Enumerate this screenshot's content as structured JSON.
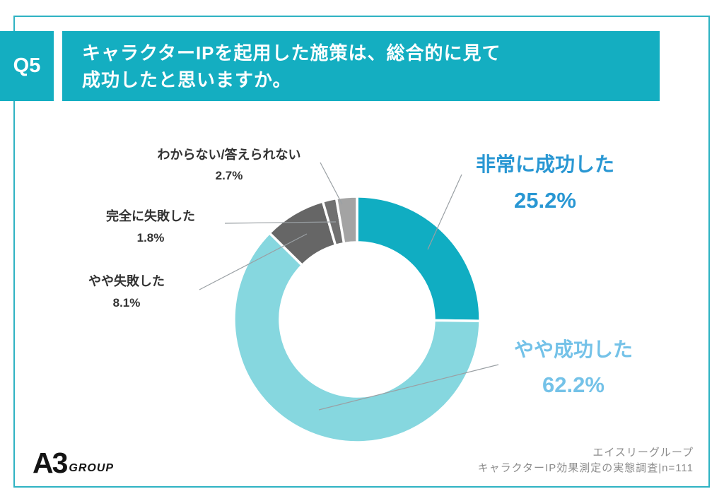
{
  "header": {
    "q_label": "Q5",
    "question_line1": "キャラクターIPを起用した施策は、総合的に見て",
    "question_line2": "成功したと思いますか。"
  },
  "chart_data": {
    "type": "pie",
    "subtype": "donut",
    "title": "キャラクターIPを起用した施策は、総合的に見て成功したと思いますか。",
    "unit": "%",
    "sample_note": "n=111",
    "direction": "clockwise",
    "start_angle_deg": 0,
    "center": [
      505,
      452
    ],
    "outer_radius": 174,
    "inner_radius": 109,
    "segment_gap_color": "#ffffff",
    "leader_line_color": "#9AA0A4",
    "segments": [
      {
        "label": "非常に成功した",
        "value": 25.2,
        "pct_label": "25.2%",
        "color": "#10ADC2",
        "label_color": "#2997D3"
      },
      {
        "label": "やや成功した",
        "value": 62.2,
        "pct_label": "62.2%",
        "color": "#86D7DF",
        "label_color": "#74C2E8"
      },
      {
        "label": "やや失敗した",
        "value": 8.1,
        "pct_label": "8.1%",
        "color": "#666666",
        "label_color": "#333333"
      },
      {
        "label": "完全に失敗した",
        "value": 1.8,
        "pct_label": "1.8%",
        "color": "#707070",
        "label_color": "#333333"
      },
      {
        "label": "わからない/答えられない",
        "value": 2.7,
        "pct_label": "2.7%",
        "color": "#A3A3A3",
        "label_color": "#333333"
      }
    ],
    "leader_lines": [
      {
        "from": [
          653,
          247
        ],
        "to": [
          605,
          353
        ]
      },
      {
        "from": [
          705,
          516
        ],
        "to": [
          451,
          580
        ]
      },
      {
        "from": [
          282,
          410
        ],
        "to": [
          434,
          331
        ]
      },
      {
        "from": [
          318,
          316
        ],
        "to": [
          475,
          314
        ]
      },
      {
        "from": [
          453,
          230
        ],
        "to": [
          484,
          289
        ]
      }
    ]
  },
  "footer": {
    "logo_main": "A3",
    "logo_sub": "GROUP",
    "credit_line1": "エイスリーグループ",
    "credit_line2": "キャラクターIP効果測定の実態調査|n=111"
  },
  "colors": {
    "accent_teal": "#14AEC1",
    "frame_border": "#2FB3C3"
  }
}
